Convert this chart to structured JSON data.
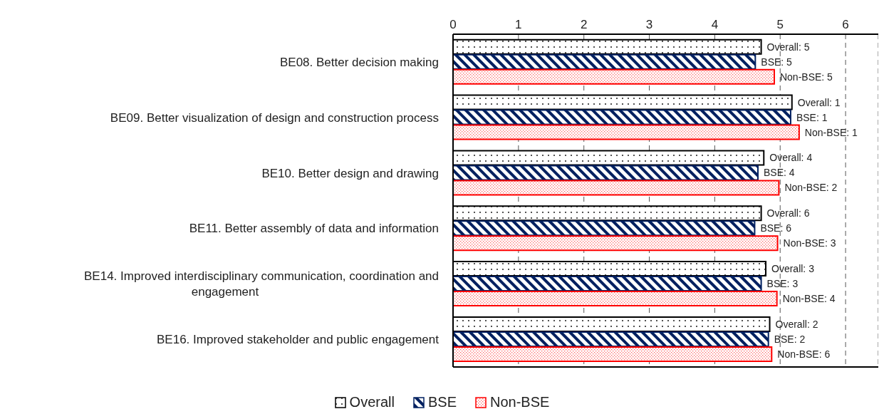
{
  "chart_data": {
    "type": "bar",
    "orientation": "horizontal",
    "categories": [
      "BE08. Better decision making",
      "BE09. Better visualization of design and construction process",
      "BE10. Better design and drawing",
      "BE11. Better assembly of data and information",
      "BE14. Improved interdisciplinary communication, coordination and engagement",
      "BE16. Improved stakeholder and public engagement"
    ],
    "series": [
      {
        "name": "Overall",
        "color": "#000000",
        "values": [
          4.71,
          5.18,
          4.75,
          4.71,
          4.78,
          4.84
        ]
      },
      {
        "name": "BSE",
        "color": "#002060",
        "values": [
          4.62,
          5.16,
          4.66,
          4.61,
          4.71,
          4.82
        ]
      },
      {
        "name": "Non-BSE",
        "color": "#ff0000",
        "values": [
          4.91,
          5.29,
          4.98,
          4.96,
          4.95,
          4.87
        ]
      }
    ],
    "annotations": [
      "Overall: 5",
      "BSE: 5",
      "Non-BSE: 5",
      "Overall: 1",
      "BSE: 1",
      "Non-BSE: 1",
      "Overall: 4",
      "BSE: 4",
      "Non-BSE: 2",
      "Overall: 6",
      "BSE: 6",
      "Non-BSE: 3",
      "Overall: 3",
      "BSE: 3",
      "Non-BSE: 4",
      "Overall: 2",
      "BSE: 2",
      "Non-BSE: 6"
    ],
    "xlim": [
      0,
      6.5
    ],
    "xticks": [
      0,
      1,
      2,
      3,
      4,
      5,
      6
    ],
    "grid": "x",
    "legend": "bottom"
  }
}
